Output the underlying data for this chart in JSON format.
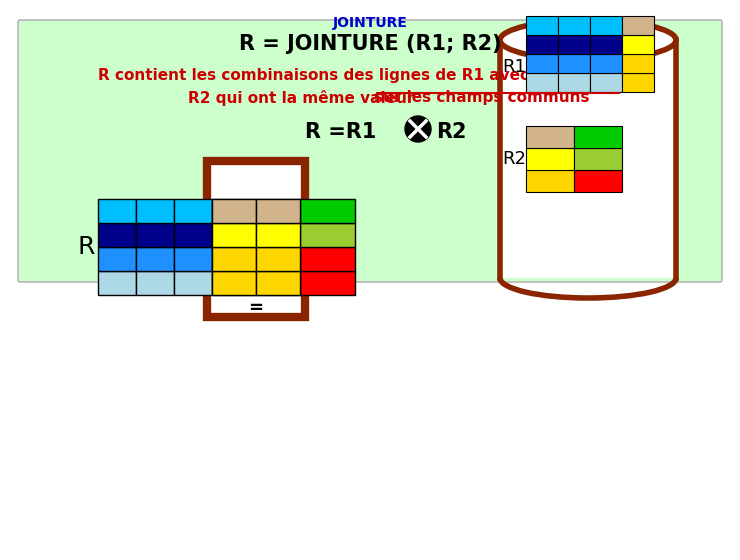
{
  "title": "JOINTURE",
  "title_color": "#0000CC",
  "bg_box_color": "#ccffcc",
  "main_text": "R = JOINTURE (R1; R2)",
  "desc_text_line1": "R contient les combinaisons des lignes de R1 avec les lignes de",
  "desc_text_line2": "R2 qui ont la même valeur ",
  "desc_text_underline": "sur les champs communs",
  "text_color": "#CC0000",
  "main_text_color": "#000000",
  "r1_rows": [
    [
      "#add8e6",
      "#add8e6",
      "#add8e6",
      "#ffd700"
    ],
    [
      "#1e90ff",
      "#1e90ff",
      "#1e90ff",
      "#ffd700"
    ],
    [
      "#00008b",
      "#00008b",
      "#00008b",
      "#ffff00"
    ],
    [
      "#00bfff",
      "#00bfff",
      "#00bfff",
      "#d2b48c"
    ]
  ],
  "r2_rows": [
    [
      "#ffd700",
      "#ff0000"
    ],
    [
      "#ffff00",
      "#9acd32"
    ],
    [
      "#d2b48c",
      "#00cc00"
    ]
  ],
  "r_left_rows": [
    [
      "#add8e6",
      "#add8e6",
      "#add8e6"
    ],
    [
      "#1e90ff",
      "#1e90ff",
      "#1e90ff"
    ],
    [
      "#00008b",
      "#00008b",
      "#00008b"
    ],
    [
      "#00bfff",
      "#00bfff",
      "#00bfff"
    ]
  ],
  "r_mid_rows": [
    [
      "#ffd700",
      "#ffd700"
    ],
    [
      "#ffd700",
      "#ffd700"
    ],
    [
      "#ffff00",
      "#ffff00"
    ],
    [
      "#d2b48c",
      "#d2b48c"
    ]
  ],
  "r_right_rows": [
    [
      "#ff0000"
    ],
    [
      "#ff0000"
    ],
    [
      "#9acd32"
    ],
    [
      "#00cc00"
    ]
  ],
  "border_color": "#8B2500",
  "cylinder_color": "#8B2500"
}
